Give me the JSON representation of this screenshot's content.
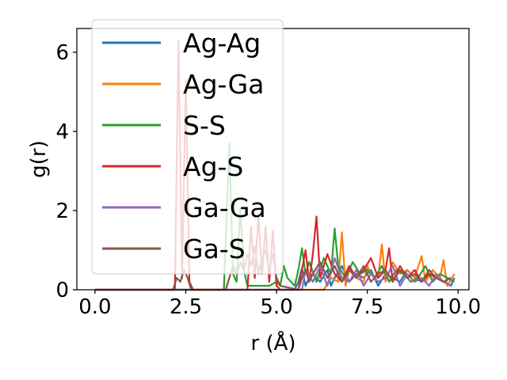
{
  "chart_data": {
    "type": "line",
    "xlabel": "r (Å)",
    "ylabel": "g(r)",
    "xlim": [
      -0.5,
      10.3
    ],
    "ylim": [
      0,
      6.6
    ],
    "xticks": [
      0.0,
      2.5,
      5.0,
      7.5,
      10.0
    ],
    "xtick_labels": [
      "0.0",
      "2.5",
      "5.0",
      "7.5",
      "10.0"
    ],
    "yticks": [
      0,
      2,
      4,
      6
    ],
    "ytick_labels": [
      "0",
      "2",
      "4",
      "6"
    ],
    "grid": false,
    "legend_position": "upper-left",
    "series": [
      {
        "name": "Ag-Ag",
        "color": "#1f77b4",
        "x": [
          0,
          5.5,
          5.6,
          5.7,
          5.8,
          5.9,
          6.0,
          6.2,
          6.4,
          6.5,
          6.6,
          6.8,
          7.0,
          7.2,
          7.4,
          7.6,
          7.8,
          8.0,
          8.2,
          8.4,
          8.6,
          8.8,
          9.0,
          9.2,
          9.4,
          9.6,
          9.8,
          9.9
        ],
        "y": [
          0,
          0,
          0.2,
          0.55,
          0.1,
          0.3,
          0.4,
          0.2,
          0.5,
          0.1,
          0.3,
          0.6,
          0.2,
          0.4,
          0.3,
          0.5,
          0.1,
          0.4,
          0.3,
          0.2,
          0.5,
          0.3,
          0.2,
          0.4,
          0.3,
          0.2,
          0.1,
          0.3
        ]
      },
      {
        "name": "Ag-Ga",
        "color": "#ff7f0e",
        "x": [
          0,
          6.3,
          6.5,
          6.7,
          6.8,
          6.9,
          7.0,
          7.2,
          7.4,
          7.5,
          7.6,
          7.8,
          7.9,
          8.0,
          8.2,
          8.4,
          8.6,
          8.8,
          9.0,
          9.1,
          9.3,
          9.5,
          9.6,
          9.7,
          9.9
        ],
        "y": [
          0,
          0,
          0.3,
          0.2,
          1.45,
          0.1,
          0.5,
          0.3,
          0.2,
          0.6,
          0.4,
          0.3,
          1.15,
          0.2,
          0.7,
          0.4,
          0.5,
          0.3,
          0.85,
          0.2,
          0.5,
          0.3,
          0.75,
          0.1,
          0.4
        ]
      },
      {
        "name": "S-S",
        "color": "#2ca02c",
        "x": [
          0,
          3.55,
          3.6,
          3.7,
          3.8,
          3.9,
          4.0,
          4.1,
          4.2,
          4.5,
          4.8,
          5.0,
          5.1,
          5.2,
          5.3,
          5.5,
          5.6,
          5.7,
          5.8,
          5.9,
          6.1,
          6.3,
          6.5,
          6.6,
          6.7,
          6.9,
          7.1,
          7.3,
          7.5,
          7.7,
          7.9,
          8.1,
          8.3,
          8.5,
          8.7,
          8.9,
          9.1,
          9.3,
          9.5,
          9.7,
          9.9
        ],
        "y": [
          0,
          0,
          1.2,
          3.7,
          0.4,
          0.2,
          2.05,
          0.5,
          0.1,
          0.1,
          0.1,
          0.2,
          0.1,
          0.6,
          0.3,
          0.1,
          0.5,
          1.05,
          0.4,
          0.7,
          0.2,
          0.8,
          0.4,
          1.55,
          0.6,
          0.3,
          0.7,
          0.4,
          0.5,
          0.3,
          0.6,
          0.2,
          0.5,
          0.4,
          0.2,
          0.3,
          0.6,
          0.2,
          0.4,
          0.3,
          0.2
        ]
      },
      {
        "name": "Ag-S",
        "color": "#d62728",
        "x": [
          0,
          2.2,
          2.3,
          2.4,
          2.5,
          2.6,
          2.7,
          4.2,
          4.3,
          4.4,
          4.5,
          4.6,
          4.7,
          4.8,
          4.9,
          5.0,
          5.1,
          5.6,
          5.8,
          5.9,
          6.0,
          6.1,
          6.2,
          6.3,
          6.4,
          6.6,
          6.8,
          7.0,
          7.2,
          7.4,
          7.6,
          7.8,
          8.0,
          8.1,
          8.2,
          8.4,
          8.6,
          8.8,
          9.0,
          9.2,
          9.4,
          9.6,
          9.8
        ],
        "y": [
          0,
          0,
          6.3,
          0.3,
          5.3,
          0.2,
          0,
          0,
          1.6,
          0.3,
          1.9,
          0.4,
          1.6,
          0.2,
          1.5,
          0.1,
          0,
          0,
          1.0,
          0.2,
          0.9,
          1.85,
          0.3,
          0.6,
          0.9,
          0.4,
          0.2,
          0.6,
          0.3,
          0.5,
          0.8,
          0.3,
          0.5,
          1.05,
          0.2,
          0.6,
          0.3,
          0.5,
          0.2,
          0.4,
          0.3,
          0.2,
          0.3
        ]
      },
      {
        "name": "Ga-Ga",
        "color": "#9467bd",
        "x": [
          0,
          5.7,
          5.8,
          6.0,
          6.2,
          6.4,
          6.6,
          6.8,
          7.0,
          7.2,
          7.4,
          7.6,
          7.8,
          8.0,
          8.2,
          8.4,
          8.6,
          8.8,
          9.0,
          9.2,
          9.4,
          9.6,
          9.8
        ],
        "y": [
          0,
          0,
          0.5,
          0.2,
          0.6,
          0.1,
          0.8,
          0.3,
          0.2,
          0.5,
          0.1,
          0.4,
          0.2,
          0.3,
          0.6,
          0.1,
          0.4,
          0.2,
          0.3,
          0.1,
          0.4,
          0.2,
          0.1
        ]
      },
      {
        "name": "Ga-S",
        "color": "#8c564b",
        "x": [
          0,
          2.15,
          2.25,
          2.35,
          2.45,
          2.55,
          2.65,
          3.6,
          3.7,
          3.8,
          3.9,
          4.0,
          4.1,
          4.2,
          4.3,
          4.4,
          4.5,
          4.6,
          4.7,
          4.8,
          4.9,
          5.0,
          5.1,
          5.6,
          5.7,
          5.8,
          5.9,
          6.0,
          6.2,
          6.4,
          6.6,
          6.8,
          7.0,
          7.2,
          7.4,
          7.6,
          7.8,
          8.0,
          8.2,
          8.4,
          8.6,
          8.8,
          9.0,
          9.2,
          9.4,
          9.6,
          9.8
        ],
        "y": [
          0,
          0,
          0.3,
          0.2,
          0.5,
          0.3,
          0,
          0,
          0.3,
          0.6,
          0.4,
          0.7,
          0.5,
          0.9,
          0.6,
          1.1,
          0.4,
          0.8,
          1.0,
          0.5,
          0.9,
          0.3,
          0.1,
          0,
          0.3,
          0.5,
          0.2,
          0.4,
          0.7,
          0.3,
          0.6,
          0.2,
          0.5,
          0.3,
          0.6,
          0.2,
          0.4,
          0.5,
          0.2,
          0.5,
          0.3,
          0.4,
          0.2,
          0.5,
          0.3,
          0.2,
          0.3
        ]
      }
    ]
  }
}
